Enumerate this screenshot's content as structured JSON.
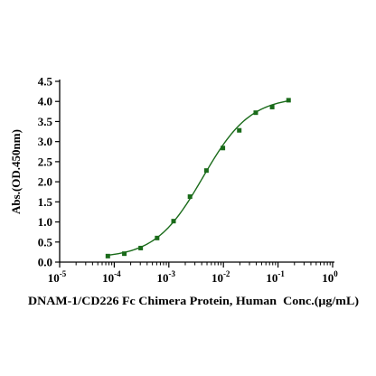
{
  "chart_data": {
    "type": "scatter",
    "title": "",
    "xlabel": "DNAM-1/CD226 Fc Chimera Protein, Human  Conc.(μg/mL)",
    "ylabel": "Abs.(OD.450nm)",
    "x_scale": "log",
    "xlim": [
      1e-05,
      1
    ],
    "ylim": [
      0,
      4.5
    ],
    "x_ticks": [
      {
        "value": 1e-05,
        "base": "10",
        "exp": "-5"
      },
      {
        "value": 0.0001,
        "base": "10",
        "exp": "-4"
      },
      {
        "value": 0.001,
        "base": "10",
        "exp": "-3"
      },
      {
        "value": 0.01,
        "base": "10",
        "exp": "-2"
      },
      {
        "value": 0.1,
        "base": "10",
        "exp": "-1"
      },
      {
        "value": 1,
        "base": "10",
        "exp": "0"
      }
    ],
    "y_ticks": [
      "0.0",
      "0.5",
      "1.0",
      "1.5",
      "2.0",
      "2.5",
      "3.0",
      "3.5",
      "4.0",
      "4.5"
    ],
    "grid": false,
    "marker_color": "#1a6b1a",
    "curve_color": "#1a6b1a",
    "series": [
      {
        "x": [
          7.63e-05,
          0.000153,
          0.000305,
          0.00061,
          0.00122,
          0.00244,
          0.00488,
          0.00977,
          0.0195,
          0.0391,
          0.0781,
          0.156
        ],
        "y": [
          0.15,
          0.21,
          0.35,
          0.6,
          1.02,
          1.63,
          2.28,
          2.84,
          3.28,
          3.72,
          3.86,
          4.03
        ]
      }
    ],
    "fit": {
      "model": "4PL",
      "bottom": 0.1,
      "top": 4.12,
      "ec50": 0.0042,
      "hill": 1.0
    }
  }
}
